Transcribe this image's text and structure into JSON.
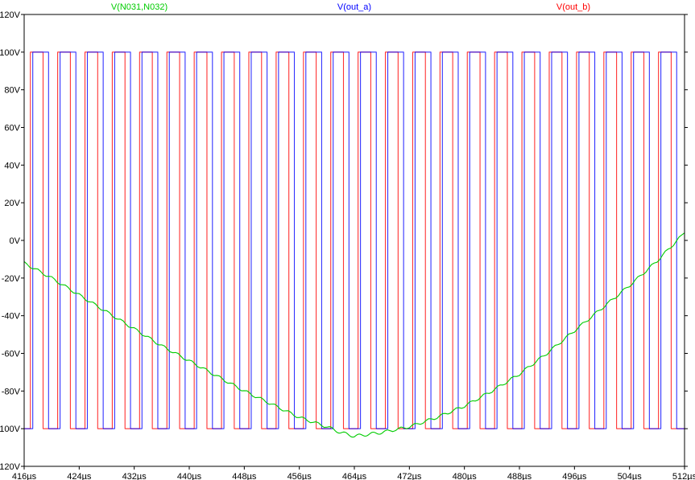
{
  "chart_data": {
    "type": "line",
    "title": "",
    "xlabel": "",
    "ylabel": "",
    "x_unit": "µs",
    "xlim": [
      416,
      512
    ],
    "ylim": [
      -120,
      120
    ],
    "grid": false,
    "legend_placement": "top",
    "x_ticks": [
      {
        "v": 416,
        "label": "416µs"
      },
      {
        "v": 424,
        "label": "424µs"
      },
      {
        "v": 432,
        "label": "432µs"
      },
      {
        "v": 440,
        "label": "440µs"
      },
      {
        "v": 448,
        "label": "448µs"
      },
      {
        "v": 456,
        "label": "456µs"
      },
      {
        "v": 464,
        "label": "464µs"
      },
      {
        "v": 472,
        "label": "472µs"
      },
      {
        "v": 480,
        "label": "480µs"
      },
      {
        "v": 488,
        "label": "488µs"
      },
      {
        "v": 496,
        "label": "496µs"
      },
      {
        "v": 504,
        "label": "504µs"
      },
      {
        "v": 512,
        "label": "512µs"
      }
    ],
    "y_ticks": [
      {
        "v": 120,
        "label": "120V"
      },
      {
        "v": 100,
        "label": "100V"
      },
      {
        "v": 80,
        "label": "80V"
      },
      {
        "v": 60,
        "label": "60V"
      },
      {
        "v": 40,
        "label": "40V"
      },
      {
        "v": 20,
        "label": "20V"
      },
      {
        "v": 0,
        "label": "0V"
      },
      {
        "v": -20,
        "label": "-20V"
      },
      {
        "v": -40,
        "label": "-40V"
      },
      {
        "v": -60,
        "label": "-60V"
      },
      {
        "v": -80,
        "label": "-80V"
      },
      {
        "v": -100,
        "label": "-100V"
      },
      {
        "v": -120,
        "label": "-120V"
      }
    ],
    "series": [
      {
        "name": "V(N031,N032)",
        "color": "#00cc00",
        "kind": "smooth",
        "x": [
          416,
          420,
          424,
          428,
          432,
          436,
          440,
          444,
          448,
          452,
          456,
          460,
          462,
          464,
          466,
          468,
          472,
          476,
          480,
          484,
          488,
          492,
          496,
          500,
          504,
          508,
          512
        ],
        "y": [
          -12,
          -20,
          -29,
          -38,
          -47,
          -56,
          -64,
          -72,
          -80,
          -87,
          -94,
          -99,
          -102,
          -104,
          -103,
          -102,
          -99,
          -94,
          -88,
          -80,
          -71,
          -60,
          -48,
          -36,
          -24,
          -11,
          4
        ]
      },
      {
        "name": "V(out_a)",
        "color": "#0000ff",
        "kind": "square",
        "high": 100,
        "low": -100,
        "period": 3.97,
        "first_rise": 417.25,
        "high_time": 2.3
      },
      {
        "name": "V(out_b)",
        "color": "#ff0000",
        "kind": "square",
        "high": 100,
        "low": -100,
        "period": 3.97,
        "first_rise": 416.9,
        "high_time": 1.85
      }
    ]
  }
}
